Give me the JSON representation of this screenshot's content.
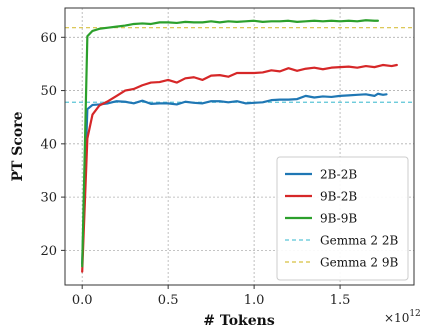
{
  "chart_data": {
    "type": "line",
    "xlabel": "# Tokens",
    "ylabel": "PT Score",
    "x_offset_label": "×10",
    "x_offset_exponent": "12",
    "xlim": [
      -0.1,
      1.93
    ],
    "ylim": [
      13.5,
      65.5
    ],
    "xticks": [
      0.0,
      0.5,
      1.0,
      1.5
    ],
    "xtick_labels": [
      "0.0",
      "0.5",
      "1.0",
      "1.5"
    ],
    "yticks": [
      20,
      30,
      40,
      50,
      60
    ],
    "ytick_labels": [
      "20",
      "30",
      "40",
      "50",
      "60"
    ],
    "grid": true,
    "legend_position": "lower-right",
    "series": [
      {
        "name": "2B-2B",
        "color": "#1f77b4",
        "style": "solid",
        "points": [
          [
            0.0,
            17.5
          ],
          [
            0.03,
            46.5
          ],
          [
            0.06,
            47.3
          ],
          [
            0.1,
            47.4
          ],
          [
            0.15,
            47.6
          ],
          [
            0.2,
            48.0
          ],
          [
            0.25,
            47.9
          ],
          [
            0.3,
            47.6
          ],
          [
            0.35,
            48.1
          ],
          [
            0.4,
            47.5
          ],
          [
            0.45,
            47.6
          ],
          [
            0.5,
            47.6
          ],
          [
            0.55,
            47.4
          ],
          [
            0.6,
            47.9
          ],
          [
            0.65,
            47.7
          ],
          [
            0.7,
            47.6
          ],
          [
            0.75,
            48.0
          ],
          [
            0.8,
            48.0
          ],
          [
            0.85,
            47.8
          ],
          [
            0.9,
            48.0
          ],
          [
            0.95,
            47.6
          ],
          [
            1.0,
            47.7
          ],
          [
            1.05,
            47.8
          ],
          [
            1.1,
            48.2
          ],
          [
            1.15,
            48.3
          ],
          [
            1.2,
            48.3
          ],
          [
            1.25,
            48.4
          ],
          [
            1.3,
            49.0
          ],
          [
            1.35,
            48.7
          ],
          [
            1.4,
            48.9
          ],
          [
            1.45,
            48.8
          ],
          [
            1.5,
            49.0
          ],
          [
            1.55,
            49.1
          ],
          [
            1.6,
            49.2
          ],
          [
            1.65,
            49.3
          ],
          [
            1.7,
            49.0
          ],
          [
            1.72,
            49.4
          ],
          [
            1.75,
            49.2
          ],
          [
            1.77,
            49.3
          ]
        ]
      },
      {
        "name": "9B-2B",
        "color": "#d62728",
        "style": "solid",
        "points": [
          [
            0.0,
            16.0
          ],
          [
            0.03,
            41.0
          ],
          [
            0.06,
            45.5
          ],
          [
            0.1,
            47.2
          ],
          [
            0.15,
            48.0
          ],
          [
            0.2,
            49.0
          ],
          [
            0.25,
            50.0
          ],
          [
            0.3,
            50.3
          ],
          [
            0.35,
            51.0
          ],
          [
            0.4,
            51.5
          ],
          [
            0.45,
            51.6
          ],
          [
            0.5,
            52.0
          ],
          [
            0.55,
            51.5
          ],
          [
            0.6,
            52.3
          ],
          [
            0.65,
            52.5
          ],
          [
            0.7,
            52.0
          ],
          [
            0.75,
            52.8
          ],
          [
            0.8,
            52.9
          ],
          [
            0.85,
            52.6
          ],
          [
            0.9,
            53.3
          ],
          [
            0.95,
            53.3
          ],
          [
            1.0,
            53.3
          ],
          [
            1.05,
            53.4
          ],
          [
            1.1,
            53.8
          ],
          [
            1.15,
            53.6
          ],
          [
            1.2,
            54.2
          ],
          [
            1.25,
            53.7
          ],
          [
            1.3,
            54.1
          ],
          [
            1.35,
            54.3
          ],
          [
            1.4,
            54.0
          ],
          [
            1.45,
            54.3
          ],
          [
            1.5,
            54.4
          ],
          [
            1.55,
            54.5
          ],
          [
            1.6,
            54.3
          ],
          [
            1.65,
            54.6
          ],
          [
            1.7,
            54.4
          ],
          [
            1.75,
            54.8
          ],
          [
            1.8,
            54.6
          ],
          [
            1.83,
            54.8
          ]
        ]
      },
      {
        "name": "9B-9B",
        "color": "#2ca02c",
        "style": "solid",
        "points": [
          [
            0.0,
            17.0
          ],
          [
            0.03,
            60.2
          ],
          [
            0.06,
            61.2
          ],
          [
            0.1,
            61.6
          ],
          [
            0.15,
            61.8
          ],
          [
            0.2,
            62.0
          ],
          [
            0.25,
            62.2
          ],
          [
            0.3,
            62.5
          ],
          [
            0.35,
            62.6
          ],
          [
            0.4,
            62.5
          ],
          [
            0.45,
            62.8
          ],
          [
            0.5,
            62.8
          ],
          [
            0.55,
            62.7
          ],
          [
            0.6,
            62.9
          ],
          [
            0.65,
            62.8
          ],
          [
            0.7,
            62.8
          ],
          [
            0.75,
            63.0
          ],
          [
            0.8,
            62.8
          ],
          [
            0.85,
            63.0
          ],
          [
            0.9,
            62.9
          ],
          [
            0.95,
            63.0
          ],
          [
            1.0,
            63.1
          ],
          [
            1.05,
            62.9
          ],
          [
            1.1,
            63.0
          ],
          [
            1.15,
            63.0
          ],
          [
            1.2,
            63.1
          ],
          [
            1.25,
            62.9
          ],
          [
            1.3,
            63.0
          ],
          [
            1.35,
            63.1
          ],
          [
            1.4,
            63.0
          ],
          [
            1.45,
            63.1
          ],
          [
            1.5,
            63.0
          ],
          [
            1.55,
            63.1
          ],
          [
            1.6,
            63.0
          ],
          [
            1.65,
            63.2
          ],
          [
            1.7,
            63.1
          ],
          [
            1.72,
            63.1
          ]
        ]
      }
    ],
    "reference_lines": [
      {
        "name": "Gemma 2 2B",
        "color": "#5bc5d6",
        "style": "dashed",
        "y": 47.8
      },
      {
        "name": "Gemma 2 9B",
        "color": "#d8c040",
        "style": "dashed",
        "y": 61.8
      }
    ]
  }
}
